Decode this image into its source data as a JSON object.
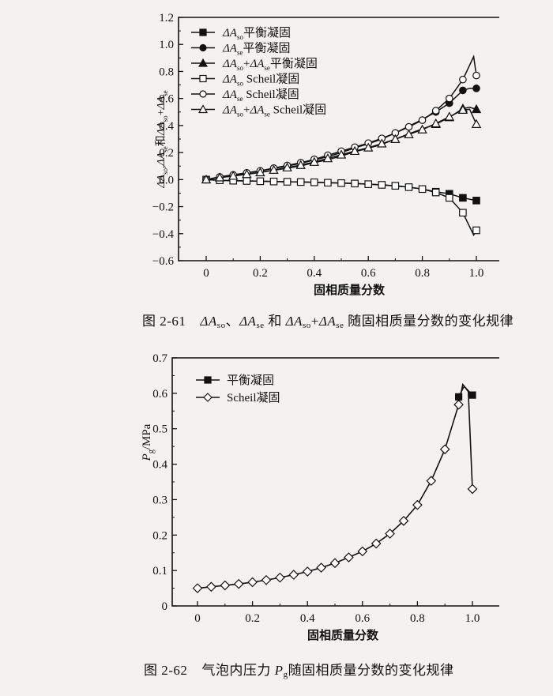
{
  "figures": [
    {
      "id": "fig-2-61",
      "caption_number": "图 2-61",
      "caption_text": "ΔA_so、ΔA_se 和 ΔA_so+ΔA_se 随固相质量分数的变化规律",
      "caption_parts": {
        "a": "ΔA",
        "so": "so",
        "sep1": "、",
        "se": "se",
        "and": " 和 ",
        "plus": "+",
        "rest": "随固相质量分数的变化规律"
      }
    },
    {
      "id": "fig-2-62",
      "caption_number": "图 2-62",
      "caption_text": "气泡内压力 P_g 随固相质量分数的变化规律",
      "caption_parts": {
        "prefix": "气泡内压力 ",
        "P": "P",
        "g": "g",
        "rest": "随固相质量分数的变化规律"
      }
    }
  ],
  "chart_data": [
    {
      "type": "line",
      "title": "ΔA_so、ΔA_se 和 ΔA_so+ΔA_se 随固相质量分数的变化规律",
      "xlabel": "固相质量分数",
      "ylabel": "ΔA_so,ΔA_se和ΔA_so+ΔA_se",
      "xlim": [
        -0.08,
        1.08
      ],
      "ylim": [
        -0.6,
        1.2
      ],
      "xticks": [
        "0",
        "0.2",
        "0.4",
        "0.6",
        "0.8",
        "1.0"
      ],
      "yticks": [
        "−0.6",
        "−0.4",
        "−0.2",
        "0.0",
        "0.2",
        "0.4",
        "0.6",
        "0.8",
        "1.0",
        "1.2"
      ],
      "grid": false,
      "legend_position": "upper left",
      "x": [
        0,
        0.05,
        0.1,
        0.15,
        0.2,
        0.25,
        0.3,
        0.35,
        0.4,
        0.45,
        0.5,
        0.55,
        0.6,
        0.65,
        0.7,
        0.75,
        0.8,
        0.85,
        0.9,
        0.95,
        1.0
      ],
      "series": [
        {
          "name": "ΔA_so平衡凝固",
          "marker": "filled-square",
          "values": [
            0,
            -0.005,
            -0.008,
            -0.01,
            -0.012,
            -0.014,
            -0.016,
            -0.018,
            -0.02,
            -0.023,
            -0.026,
            -0.029,
            -0.034,
            -0.039,
            -0.046,
            -0.056,
            -0.07,
            -0.09,
            -0.105,
            -0.135,
            -0.155
          ]
        },
        {
          "name": "ΔA_se平衡凝固",
          "marker": "filled-circle",
          "values": [
            0,
            0.02,
            0.035,
            0.05,
            0.065,
            0.083,
            0.1,
            0.12,
            0.145,
            0.17,
            0.2,
            0.235,
            0.265,
            0.3,
            0.345,
            0.395,
            0.445,
            0.5,
            0.565,
            0.66,
            0.675
          ]
        },
        {
          "name": "ΔA_so+ΔA_se平衡凝固",
          "marker": "filled-triangle",
          "values": [
            0,
            0.015,
            0.027,
            0.04,
            0.053,
            0.069,
            0.084,
            0.102,
            0.125,
            0.147,
            0.174,
            0.206,
            0.231,
            0.261,
            0.299,
            0.339,
            0.375,
            0.41,
            0.46,
            0.525,
            0.52
          ]
        },
        {
          "name": "ΔA_so Scheil凝固",
          "marker": "open-square",
          "values": [
            0,
            -0.005,
            -0.008,
            -0.01,
            -0.012,
            -0.014,
            -0.016,
            -0.018,
            -0.02,
            -0.023,
            -0.026,
            -0.029,
            -0.034,
            -0.039,
            -0.046,
            -0.056,
            -0.07,
            -0.095,
            -0.135,
            -0.245,
            -0.375
          ]
        },
        {
          "name": "ΔA_se Scheil凝固",
          "marker": "open-circle",
          "values": [
            0,
            0.02,
            0.035,
            0.05,
            0.065,
            0.085,
            0.105,
            0.125,
            0.15,
            0.18,
            0.21,
            0.24,
            0.27,
            0.305,
            0.345,
            0.39,
            0.44,
            0.51,
            0.6,
            0.74,
            0.77
          ]
        },
        {
          "name": "ΔA_so+ΔA_se Scheil凝固",
          "marker": "open-triangle",
          "values": [
            0,
            0.015,
            0.027,
            0.04,
            0.053,
            0.071,
            0.089,
            0.107,
            0.13,
            0.157,
            0.184,
            0.211,
            0.236,
            0.266,
            0.299,
            0.334,
            0.37,
            0.415,
            0.465,
            0.515,
            0.41
          ]
        }
      ],
      "annotations": [
        "Scheil curves peak near x≈0.99 (ΔA_se≈0.91, ΔA_so≈−0.41) before final point"
      ]
    },
    {
      "type": "line",
      "title": "气泡内压力 P_g 随固相质量分数的变化规律",
      "xlabel": "固相质量分数",
      "ylabel": "P_g/MPa",
      "xlim": [
        -0.08,
        1.08
      ],
      "ylim": [
        0,
        0.7
      ],
      "xticks": [
        "0",
        "0.2",
        "0.4",
        "0.6",
        "0.8",
        "1.0"
      ],
      "yticks": [
        "0",
        "0.1",
        "0.2",
        "0.3",
        "0.4",
        "0.5",
        "0.6",
        "0.7"
      ],
      "grid": false,
      "legend_position": "upper left",
      "x": [
        0,
        0.05,
        0.1,
        0.15,
        0.2,
        0.25,
        0.3,
        0.35,
        0.4,
        0.45,
        0.5,
        0.55,
        0.6,
        0.65,
        0.7,
        0.75,
        0.8,
        0.85,
        0.9,
        0.95,
        1.0
      ],
      "series": [
        {
          "name": "平衡凝固",
          "marker": "filled-square",
          "x": [
            0.95,
            1.0
          ],
          "values": [
            0.59,
            0.595
          ],
          "note": "coincides with Scheil curve for x ≤ 0.95; peak ≈0.62 at x≈0.97"
        },
        {
          "name": "Scheil凝固",
          "marker": "open-diamond",
          "values": [
            0.05,
            0.054,
            0.058,
            0.062,
            0.067,
            0.073,
            0.08,
            0.088,
            0.097,
            0.108,
            0.121,
            0.137,
            0.154,
            0.176,
            0.204,
            0.24,
            0.285,
            0.353,
            0.442,
            0.568,
            0.33
          ]
        }
      ],
      "annotations": [
        "Scheil peak ≈0.625 at x≈0.96"
      ]
    }
  ]
}
